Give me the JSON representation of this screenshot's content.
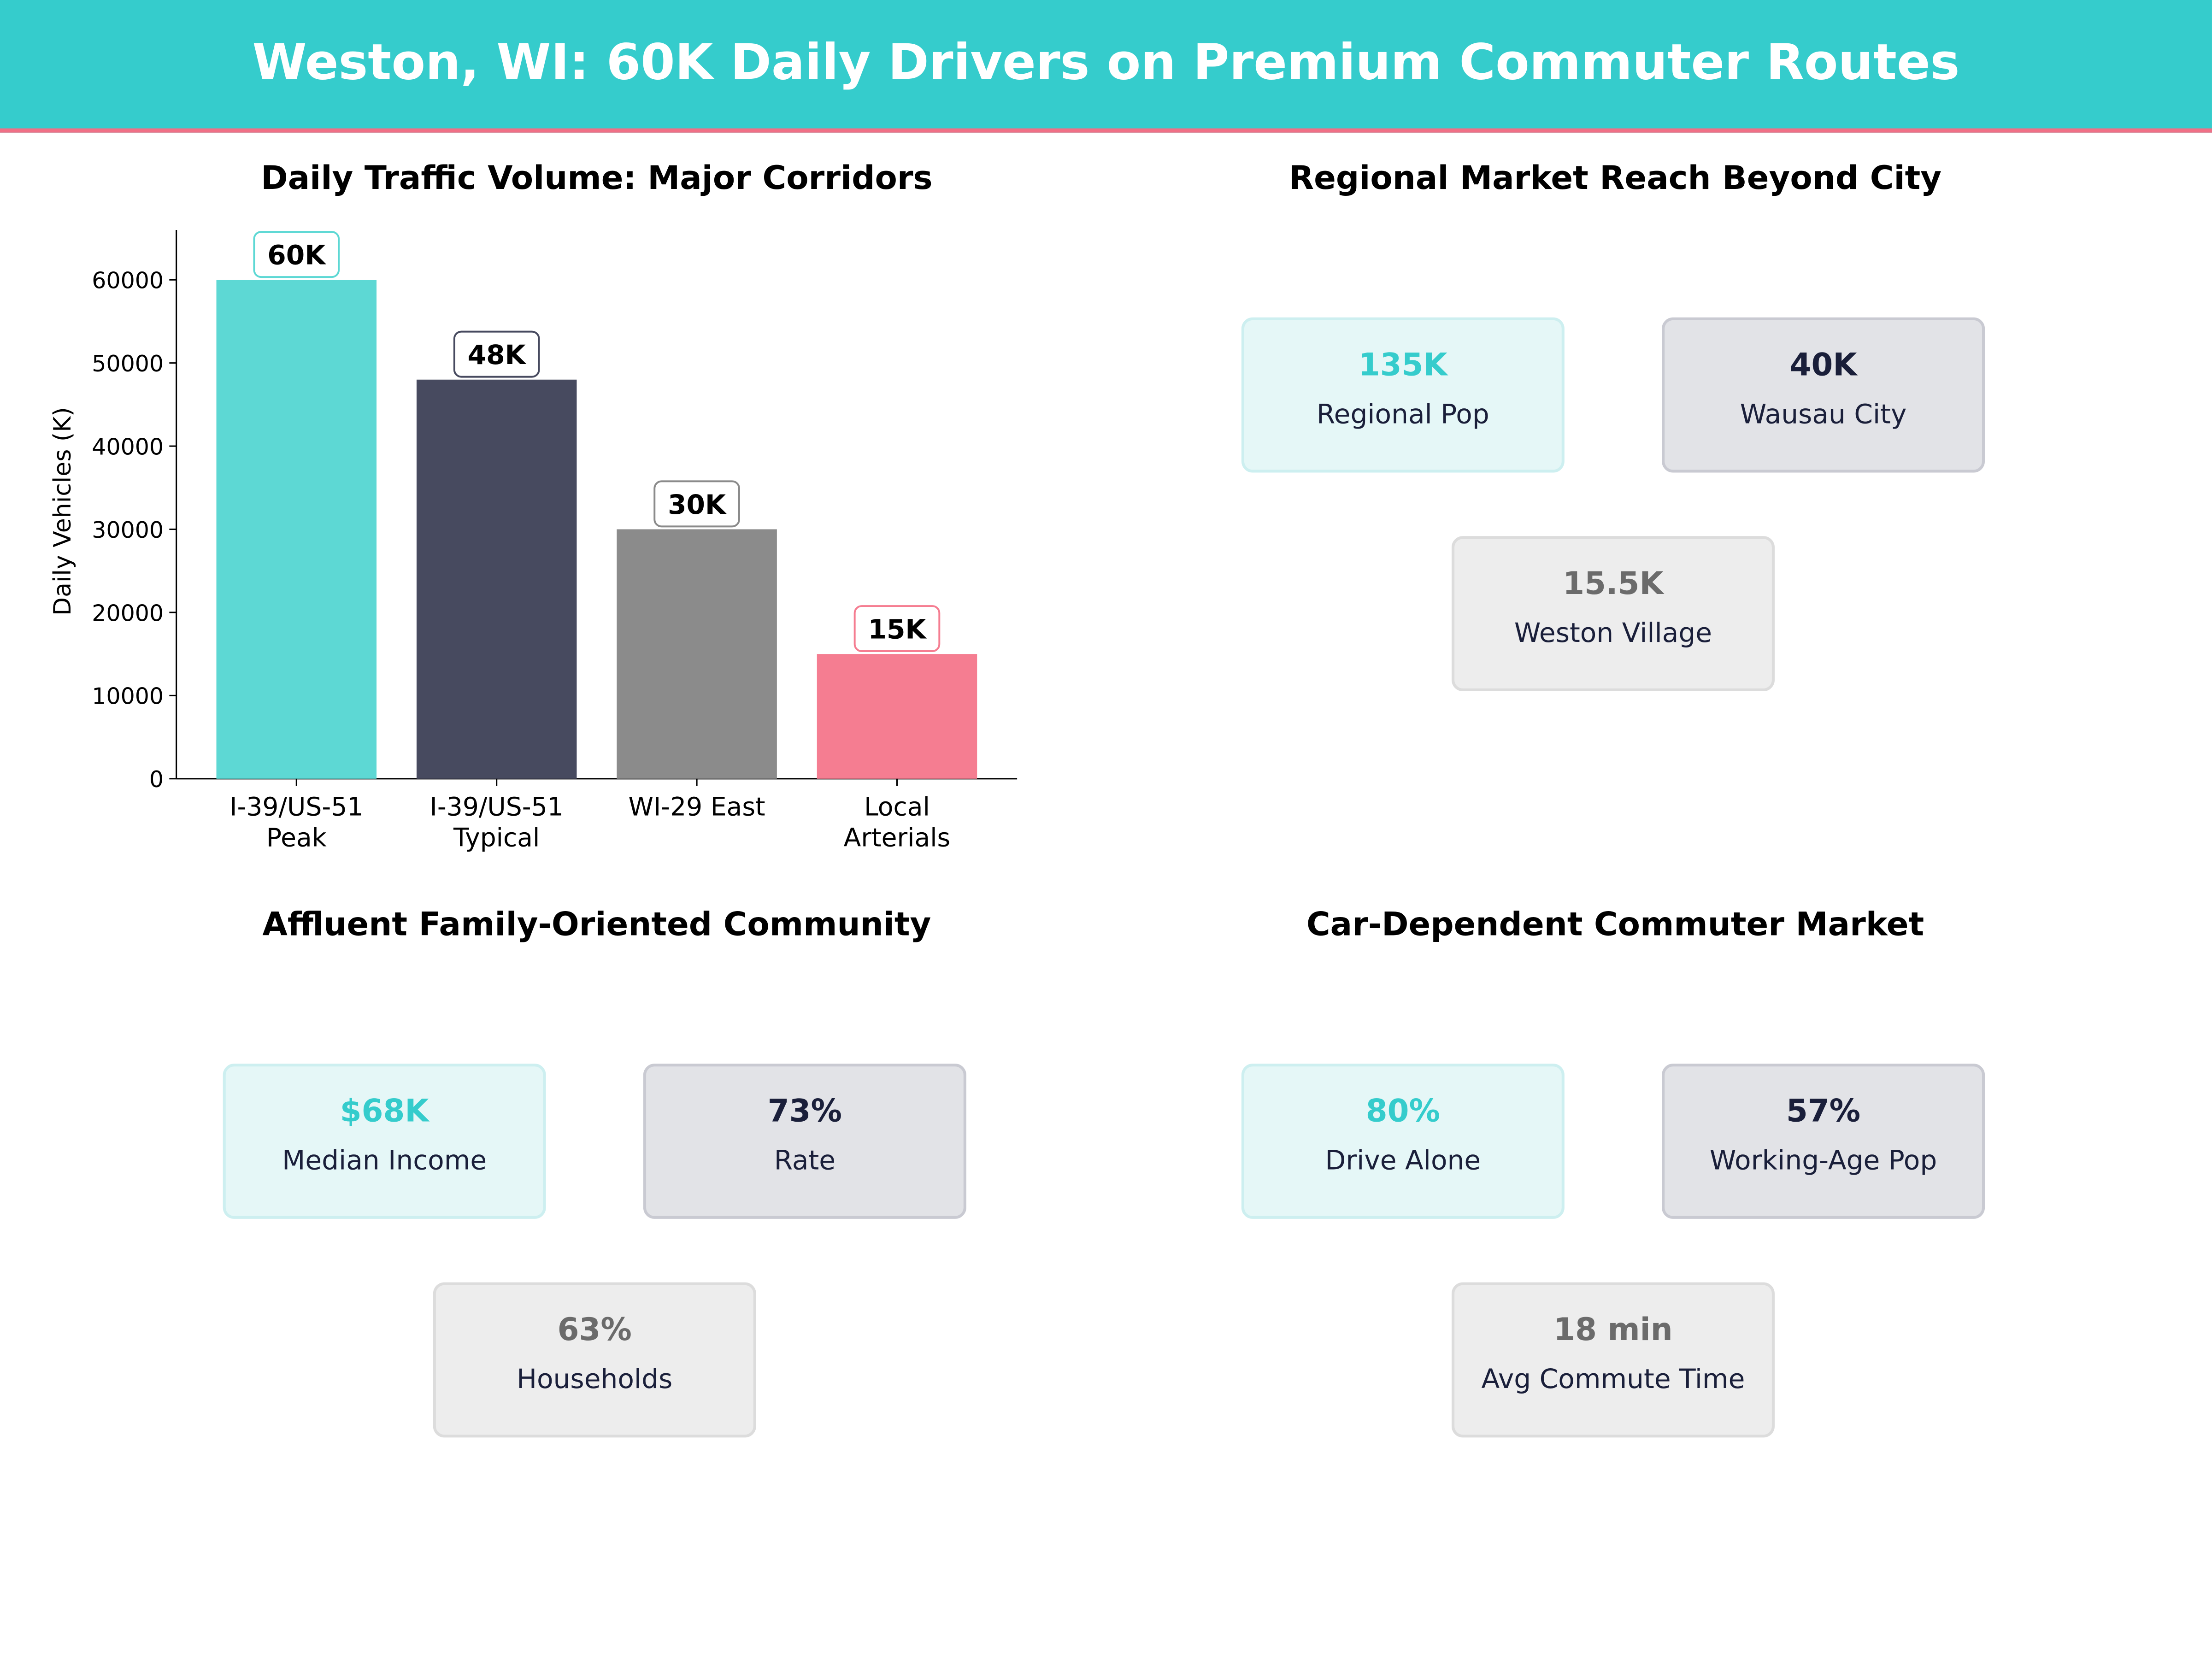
{
  "header": {
    "title": "Weston, WI: 60K Daily Drivers on Premium Commuter Routes",
    "bg_color": "#35cccc",
    "accent_line_color": "#f07086"
  },
  "chart_data": {
    "type": "bar",
    "title": "Daily Traffic Volume: Major Corridors",
    "categories": [
      "I-39/US-51\nPeak",
      "I-39/US-51\nTypical",
      "WI-29 East",
      "Local\nArterials"
    ],
    "values": [
      60000,
      48000,
      30000,
      15000
    ],
    "data_labels": [
      "60K",
      "48K",
      "30K",
      "15K"
    ],
    "colors": [
      "#5dd8d4",
      "#474a5f",
      "#8b8b8b",
      "#f57d91"
    ],
    "xlabel": "",
    "ylabel": "Daily Vehicles (K)",
    "ylim": [
      0,
      66000
    ],
    "yticks": [
      0,
      10000,
      20000,
      30000,
      40000,
      50000,
      60000
    ],
    "grid": false
  },
  "panels": {
    "regional": {
      "title": "Regional Market Reach Beyond City",
      "cards": [
        {
          "value": "135K",
          "label": "Regional Pop"
        },
        {
          "value": "40K",
          "label": "Wausau City"
        },
        {
          "value": "15.5K",
          "label": "Weston Village"
        }
      ]
    },
    "affluent": {
      "title": "Affluent Family-Oriented Community",
      "cards": [
        {
          "value": "$68K",
          "label": "Median Income"
        },
        {
          "value": "73%",
          "label": "Rate"
        },
        {
          "value": "63%",
          "label": "Households"
        }
      ]
    },
    "commuter": {
      "title": "Car-Dependent Commuter Market",
      "cards": [
        {
          "value": "80%",
          "label": "Drive Alone"
        },
        {
          "value": "57%",
          "label": "Working-Age Pop"
        },
        {
          "value": "18 min",
          "label": "Avg Commute Time"
        }
      ]
    }
  }
}
